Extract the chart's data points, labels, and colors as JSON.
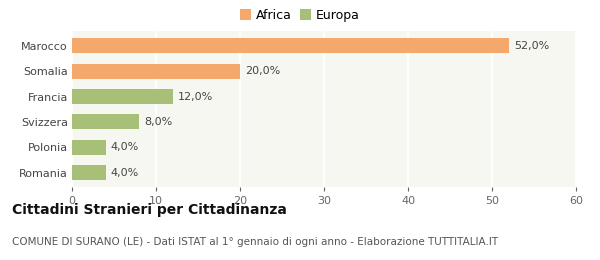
{
  "categories": [
    "Marocco",
    "Somalia",
    "Francia",
    "Svizzera",
    "Polonia",
    "Romania"
  ],
  "values": [
    52.0,
    20.0,
    12.0,
    8.0,
    4.0,
    4.0
  ],
  "colors": [
    "#F4A86C",
    "#F4A86C",
    "#A8BF78",
    "#A8BF78",
    "#A8BF78",
    "#A8BF78"
  ],
  "bar_labels": [
    "52,0%",
    "20,0%",
    "12,0%",
    "8,0%",
    "4,0%",
    "4,0%"
  ],
  "legend_items": [
    {
      "label": "Africa",
      "color": "#F4A86C"
    },
    {
      "label": "Europa",
      "color": "#A8BF78"
    }
  ],
  "xlim": [
    0,
    60
  ],
  "xticks": [
    0,
    10,
    20,
    30,
    40,
    50,
    60
  ],
  "title": "Cittadini Stranieri per Cittadinanza",
  "subtitle": "COMUNE DI SURANO (LE) - Dati ISTAT al 1° gennaio di ogni anno - Elaborazione TUTTITALIA.IT",
  "bg_color": "#FFFFFF",
  "plot_bg_color": "#F7F7F2",
  "grid_color": "#FFFFFF",
  "title_fontsize": 10,
  "subtitle_fontsize": 7.5,
  "label_fontsize": 8,
  "tick_fontsize": 8
}
